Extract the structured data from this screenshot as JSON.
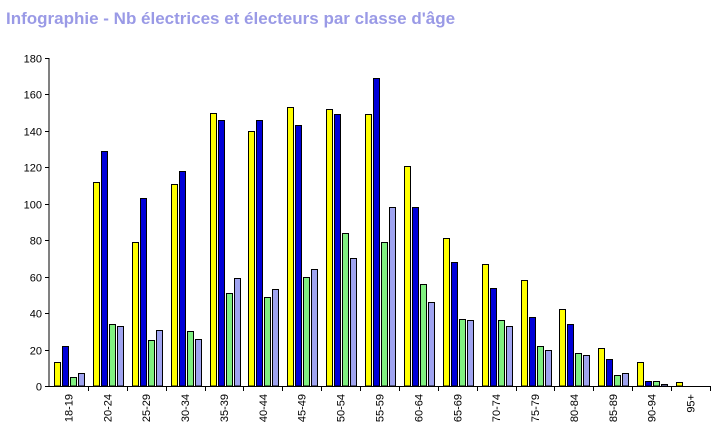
{
  "chart_data": {
    "type": "bar",
    "title": "Infographie - Nb électrices et électeurs par classe d'âge",
    "xlabel": "",
    "ylabel": "",
    "ylim": [
      0,
      180
    ],
    "yticks": [
      0,
      20,
      40,
      60,
      80,
      100,
      120,
      140,
      160,
      180
    ],
    "grid": false,
    "legend": "none",
    "categories": [
      "18-19",
      "20-24",
      "25-29",
      "30-34",
      "35-39",
      "40-44",
      "45-49",
      "50-54",
      "55-59",
      "60-64",
      "65-69",
      "70-74",
      "75-79",
      "80-84",
      "85-89",
      "90-94",
      "95+"
    ],
    "series": [
      {
        "color": "#ffff00",
        "values": [
          13,
          112,
          79,
          111,
          150,
          140,
          153,
          152,
          149,
          121,
          81,
          67,
          58,
          42,
          21,
          13,
          2
        ]
      },
      {
        "color": "#0000d8",
        "values": [
          22,
          129,
          103,
          118,
          146,
          146,
          143,
          149,
          169,
          98,
          68,
          54,
          38,
          34,
          15,
          3,
          0
        ]
      },
      {
        "color": "#80f080",
        "values": [
          5,
          34,
          25,
          30,
          51,
          49,
          60,
          84,
          79,
          56,
          37,
          36,
          22,
          18,
          6,
          3,
          0
        ]
      },
      {
        "color": "#9fa3f0",
        "values": [
          7,
          33,
          31,
          26,
          59,
          53,
          64,
          70,
          98,
          46,
          36,
          33,
          20,
          17,
          7,
          1,
          0
        ]
      }
    ]
  },
  "colors": {
    "title": "#9a9ae6",
    "axis": "#000000"
  }
}
